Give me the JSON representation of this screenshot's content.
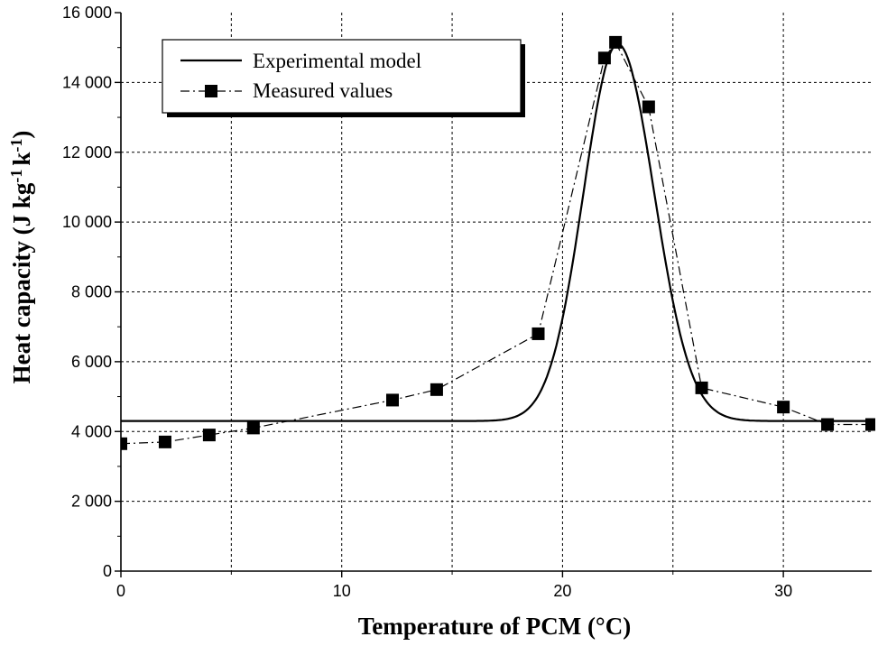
{
  "chart_data": {
    "type": "line",
    "xlabel": "Temperature of PCM (°C)",
    "ylabel_main": "Heat capacity (J kg",
    "ylabel_sup1": "-1",
    "ylabel_mid": "k",
    "ylabel_sup2": "-1",
    "ylabel_end": ")",
    "xlim": [
      0,
      34
    ],
    "ylim": [
      0,
      16000
    ],
    "x_ticks": [
      0,
      10,
      20,
      30
    ],
    "x_tick_labels": [
      "0",
      "10",
      "20",
      "30"
    ],
    "y_ticks": [
      0,
      2000,
      4000,
      6000,
      8000,
      10000,
      12000,
      14000,
      16000
    ],
    "y_tick_labels": [
      "0",
      "2 000",
      "4 000",
      "6 000",
      "8 000",
      "10 000",
      "12 000",
      "14 000",
      "16 000"
    ],
    "grid": true,
    "legend_position": "top-left",
    "series": [
      {
        "name": "Experimental model",
        "style": "solid",
        "model": {
          "baseline": 4300,
          "peak_x": 22.5,
          "peak_height": 10800,
          "sigma_left": 1.55,
          "sigma_right": 1.65
        }
      },
      {
        "name": "Measured values",
        "style": "dash-dot-square",
        "x": [
          0,
          2,
          4,
          6,
          12.3,
          14.3,
          18.9,
          21.9,
          22.4,
          23.9,
          26.3,
          30,
          32,
          34
        ],
        "y": [
          3650,
          3700,
          3900,
          4100,
          4900,
          5200,
          6800,
          14700,
          15150,
          13300,
          5250,
          4700,
          4200,
          4200
        ]
      }
    ]
  }
}
